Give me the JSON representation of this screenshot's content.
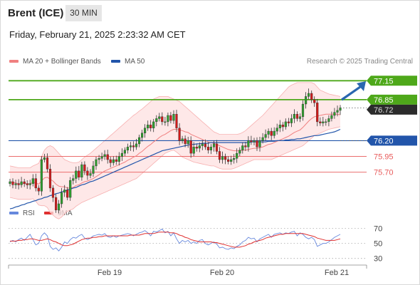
{
  "header": {
    "instrument": "Brent (ICE)",
    "timeframe": "30 MIN",
    "datetime": "Friday, February 21, 2025 2:23:32 AM CET"
  },
  "legend": {
    "ma20_label": "MA 20 + Bollinger Bands",
    "ma50_label": "MA 50",
    "rsi_label": "RSI",
    "rsi9_label": "9MA",
    "credit": "Research © 2025 Trading Central"
  },
  "colors": {
    "up": "#2e9e2e",
    "down": "#d11a1a",
    "ma20": "#f08080",
    "ma50": "#2255aa",
    "band": "#fde0e0",
    "resistance": "#4ea81a",
    "support_line": "#2255aa",
    "support_levels": "#e85a5a",
    "arrow": "#2a66b0",
    "rsi": "#6688dd",
    "rsi9": "#e03030"
  },
  "chart_data": [
    {
      "type": "candlestick",
      "title": "Brent (ICE)",
      "subtitle": "30 MIN",
      "x_ticks": [
        "Feb 19",
        "Feb 20",
        "Feb 21"
      ],
      "ylim": [
        75.2,
        77.3
      ],
      "price_levels": [
        {
          "label": "77.15",
          "value": 77.15,
          "kind": "resistance"
        },
        {
          "label": "76.85",
          "value": 76.85,
          "kind": "resistance"
        },
        {
          "label": "76.72",
          "value": 76.72,
          "kind": "last"
        },
        {
          "label": "76.20",
          "value": 76.2,
          "kind": "pivot"
        },
        {
          "label": "75.95",
          "value": 75.95,
          "kind": "support"
        },
        {
          "label": "75.70",
          "value": 75.7,
          "kind": "support"
        }
      ],
      "series": [
        {
          "name": "MA 20 + Bollinger Bands",
          "type": "line"
        },
        {
          "name": "MA 50",
          "type": "line"
        }
      ],
      "close": [
        75.55,
        75.5,
        75.52,
        75.5,
        75.55,
        75.52,
        75.5,
        75.52,
        75.6,
        75.45,
        75.4,
        75.9,
        75.93,
        75.75,
        75.45,
        75.3,
        75.1,
        75.2,
        75.38,
        75.42,
        75.3,
        75.57,
        75.6,
        75.72,
        75.62,
        75.82,
        75.72,
        75.65,
        75.68,
        75.8,
        75.9,
        75.92,
        75.95,
        75.98,
        75.9,
        75.85,
        75.9,
        75.87,
        75.95,
        76.0,
        76.05,
        76.1,
        76.12,
        76.1,
        76.15,
        76.25,
        76.32,
        76.4,
        76.45,
        76.4,
        76.5,
        76.55,
        76.58,
        76.5,
        76.5,
        76.6,
        76.52,
        76.62,
        76.4,
        76.2,
        76.23,
        76.15,
        76.2,
        76.0,
        76.1,
        76.08,
        76.12,
        76.15,
        76.1,
        76.05,
        76.1,
        76.15,
        76.03,
        75.9,
        75.95,
        75.9,
        75.87,
        75.9,
        75.92,
        76.0,
        76.05,
        76.12,
        76.1,
        76.2,
        76.18,
        76.2,
        76.1,
        76.2,
        76.25,
        76.3,
        76.35,
        76.28,
        76.35,
        76.4,
        76.45,
        76.42,
        76.5,
        76.48,
        76.55,
        76.62,
        76.55,
        76.58,
        76.78,
        76.9,
        76.95,
        76.85,
        76.8,
        76.5,
        76.48,
        76.5,
        76.5,
        76.55,
        76.6,
        76.65,
        76.68,
        76.72
      ],
      "ma20": [
        75.55,
        75.54,
        75.53,
        75.52,
        75.52,
        75.52,
        75.52,
        75.52,
        75.54,
        75.53,
        75.51,
        75.56,
        75.61,
        75.62,
        75.59,
        75.56,
        75.51,
        75.48,
        75.47,
        75.47,
        75.45,
        75.45,
        75.46,
        75.49,
        75.5,
        75.53,
        75.55,
        75.56,
        75.58,
        75.6,
        75.63,
        75.66,
        75.69,
        75.72,
        75.74,
        75.76,
        75.78,
        75.8,
        75.82,
        75.84,
        75.86,
        75.89,
        75.91,
        75.94,
        75.96,
        76.0,
        76.03,
        76.07,
        76.11,
        76.14,
        76.18,
        76.21,
        76.25,
        76.28,
        76.3,
        76.33,
        76.36,
        76.38,
        76.38,
        76.37,
        76.36,
        76.34,
        76.33,
        76.3,
        76.28,
        76.26,
        76.24,
        76.22,
        76.2,
        76.18,
        76.17,
        76.16,
        76.14,
        76.12,
        76.1,
        76.08,
        76.06,
        76.05,
        76.04,
        76.04,
        76.04,
        76.05,
        76.05,
        76.06,
        76.07,
        76.08,
        76.08,
        76.09,
        76.1,
        76.12,
        76.14,
        76.15,
        76.17,
        76.19,
        76.21,
        76.23,
        76.25,
        76.27,
        76.3,
        76.33,
        76.35,
        76.37,
        76.41,
        76.46,
        76.51,
        76.55,
        76.58,
        76.59,
        76.6,
        76.61,
        76.62,
        76.62,
        76.62,
        76.62,
        76.62,
        76.61
      ],
      "bb_upper": [
        75.8,
        75.79,
        75.78,
        75.77,
        75.77,
        75.77,
        75.77,
        75.77,
        75.8,
        75.82,
        75.84,
        75.95,
        76.05,
        76.1,
        76.12,
        76.1,
        76.05,
        76.0,
        75.95,
        75.9,
        75.88,
        75.86,
        75.85,
        75.85,
        75.86,
        75.9,
        75.94,
        75.97,
        76.0,
        76.04,
        76.08,
        76.12,
        76.16,
        76.2,
        76.24,
        76.28,
        76.32,
        76.36,
        76.4,
        76.44,
        76.48,
        76.52,
        76.56,
        76.6,
        76.63,
        76.67,
        76.7,
        76.74,
        76.78,
        76.82,
        76.86,
        76.88,
        76.9,
        76.9,
        76.9,
        76.9,
        76.88,
        76.86,
        76.84,
        76.82,
        76.78,
        76.74,
        76.7,
        76.66,
        76.62,
        76.58,
        76.54,
        76.5,
        76.46,
        76.42,
        76.38,
        76.34,
        76.32,
        76.3,
        76.3,
        76.3,
        76.3,
        76.3,
        76.3,
        76.3,
        76.31,
        76.33,
        76.36,
        76.4,
        76.44,
        76.48,
        76.52,
        76.56,
        76.6,
        76.65,
        76.7,
        76.75,
        76.8,
        76.85,
        76.9,
        76.95,
        77.0,
        77.05,
        77.08,
        77.1,
        77.12,
        77.12,
        77.12,
        77.12,
        77.12,
        77.12,
        77.1,
        77.05,
        77.0,
        76.98,
        76.96,
        76.94,
        76.93,
        76.92,
        76.91,
        76.9
      ],
      "bb_lower": [
        75.3,
        75.29,
        75.28,
        75.27,
        75.27,
        75.27,
        75.27,
        75.27,
        75.28,
        75.24,
        75.18,
        75.17,
        75.17,
        75.14,
        75.06,
        75.02,
        74.98,
        74.96,
        74.99,
        75.04,
        75.08,
        75.1,
        75.12,
        75.16,
        75.19,
        75.22,
        75.24,
        75.26,
        75.28,
        75.3,
        75.32,
        75.34,
        75.36,
        75.38,
        75.4,
        75.42,
        75.44,
        75.46,
        75.48,
        75.5,
        75.52,
        75.54,
        75.56,
        75.58,
        75.6,
        75.64,
        75.68,
        75.72,
        75.76,
        75.8,
        75.84,
        75.88,
        75.92,
        75.96,
        76.0,
        76.02,
        76.04,
        76.05,
        76.02,
        75.98,
        75.94,
        75.92,
        75.9,
        75.88,
        75.86,
        75.85,
        75.84,
        75.83,
        75.82,
        75.81,
        75.8,
        75.8,
        75.78,
        75.76,
        75.75,
        75.75,
        75.75,
        75.75,
        75.76,
        75.78,
        75.8,
        75.82,
        75.84,
        75.86,
        75.88,
        75.9,
        75.9,
        75.9,
        75.9,
        75.9,
        75.9,
        75.9,
        75.92,
        75.94,
        75.96,
        75.98,
        76.0,
        76.02,
        76.04,
        76.06,
        76.08,
        76.1,
        76.12,
        76.16,
        76.2,
        76.24,
        76.28,
        76.3,
        76.32,
        76.34,
        76.36,
        76.38,
        76.39,
        76.4,
        76.41,
        76.42
      ],
      "ma50": [
        75.12,
        75.13,
        75.15,
        75.16,
        75.18,
        75.19,
        75.21,
        75.22,
        75.24,
        75.25,
        75.27,
        75.28,
        75.3,
        75.31,
        75.33,
        75.34,
        75.36,
        75.37,
        75.39,
        75.4,
        75.42,
        75.43,
        75.45,
        75.46,
        75.48,
        75.5,
        75.51,
        75.53,
        75.55,
        75.56,
        75.58,
        75.6,
        75.62,
        75.64,
        75.66,
        75.68,
        75.7,
        75.72,
        75.74,
        75.76,
        75.78,
        75.8,
        75.82,
        75.84,
        75.86,
        75.88,
        75.9,
        75.92,
        75.94,
        75.96,
        75.98,
        76.0,
        76.02,
        76.04,
        76.05,
        76.06,
        76.07,
        76.08,
        76.09,
        76.1,
        76.11,
        76.12,
        76.13,
        76.14,
        76.14,
        76.15,
        76.15,
        76.16,
        76.16,
        76.16,
        76.17,
        76.17,
        76.17,
        76.17,
        76.17,
        76.17,
        76.17,
        76.17,
        76.17,
        76.17,
        76.17,
        76.17,
        76.17,
        76.17,
        76.18,
        76.18,
        76.18,
        76.18,
        76.18,
        76.18,
        76.19,
        76.19,
        76.19,
        76.2,
        76.2,
        76.2,
        76.21,
        76.21,
        76.22,
        76.22,
        76.23,
        76.23,
        76.24,
        76.25,
        76.26,
        76.27,
        76.28,
        76.28,
        76.29,
        76.3,
        76.31,
        76.32,
        76.33,
        76.34,
        76.36,
        76.38
      ]
    },
    {
      "type": "line",
      "title": "RSI",
      "ylim": [
        25,
        78
      ],
      "y_ticks": [
        70,
        50,
        30
      ],
      "series": [
        {
          "name": "RSI",
          "values": [
            52,
            54,
            52,
            55,
            57,
            54,
            58,
            62,
            55,
            48,
            50,
            60,
            64,
            60,
            46,
            42,
            44,
            40,
            45,
            52,
            50,
            55,
            58,
            57,
            60,
            62,
            57,
            55,
            57,
            60,
            61,
            62,
            61,
            63,
            59,
            58,
            60,
            58,
            60,
            61,
            62,
            63,
            62,
            60,
            62,
            64,
            65,
            67,
            64,
            60,
            66,
            65,
            67,
            69,
            64,
            66,
            60,
            64,
            56,
            50,
            54,
            52,
            54,
            50,
            52,
            50,
            54,
            55,
            50,
            48,
            50,
            52,
            49,
            44,
            45,
            43,
            42,
            44,
            43,
            46,
            48,
            52,
            54,
            58,
            56,
            57,
            52,
            56,
            58,
            60,
            62,
            58,
            62,
            63,
            64,
            62,
            64,
            63,
            65,
            66,
            60,
            64,
            62,
            58,
            56,
            58,
            55,
            46,
            48,
            50,
            50,
            52,
            55,
            58,
            60,
            62
          ]
        },
        {
          "name": "9MA",
          "values": [
            53,
            53,
            53,
            54,
            54,
            55,
            55,
            56,
            56,
            55,
            54,
            54,
            55,
            56,
            55,
            53,
            52,
            50,
            48,
            47,
            47,
            48,
            49,
            51,
            53,
            55,
            56,
            57,
            57,
            58,
            58,
            59,
            59,
            60,
            60,
            60,
            60,
            60,
            60,
            60,
            60,
            60,
            61,
            61,
            61,
            61,
            62,
            63,
            63,
            63,
            63,
            64,
            65,
            65,
            65,
            65,
            64,
            64,
            63,
            61,
            60,
            58,
            57,
            55,
            54,
            53,
            52,
            52,
            52,
            52,
            52,
            51,
            51,
            50,
            49,
            48,
            47,
            46,
            45,
            45,
            45,
            46,
            47,
            49,
            50,
            52,
            53,
            54,
            55,
            57,
            58,
            59,
            60,
            61,
            62,
            62,
            63,
            63,
            63,
            63,
            63,
            63,
            63,
            62,
            61,
            60,
            59,
            57,
            56,
            55,
            54,
            54,
            54,
            54,
            55,
            56
          ]
        }
      ]
    }
  ]
}
